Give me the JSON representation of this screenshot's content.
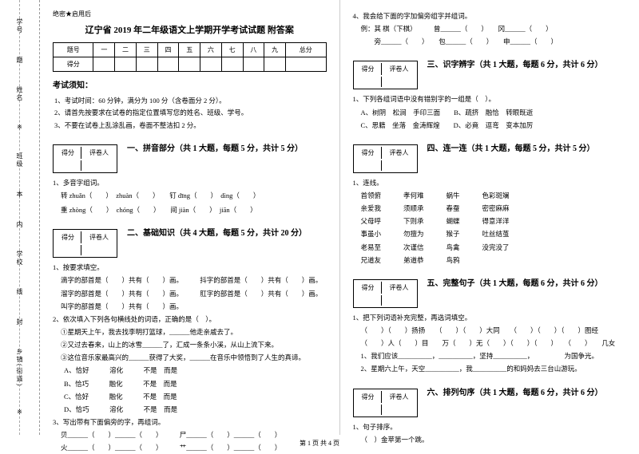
{
  "sidebar": {
    "labels": [
      "学号",
      "姓名",
      "班级",
      "学校",
      "乡镇(街道)"
    ],
    "markers": [
      "题",
      "※",
      "本",
      "内",
      "线",
      "封",
      "※"
    ]
  },
  "secret": "绝密★启用后",
  "title": "辽宁省 2019 年二年级语文上学期开学考试试题  附答案",
  "score_table": {
    "cols": [
      "题号",
      "一",
      "二",
      "三",
      "四",
      "五",
      "六",
      "七",
      "八",
      "九",
      "总分"
    ],
    "row_label": "得分"
  },
  "notice": {
    "heading": "考试须知：",
    "items": [
      "1、考试时间：60 分钟，满分为 100 分（含卷面分 2 分）。",
      "2、请首先按要求在试卷的指定位置填写您的姓名、班级、学号。",
      "3、不要在试卷上乱涂乱画，卷面不整洁扣 2 分。"
    ]
  },
  "scorer_cells": [
    "得分",
    "评卷人"
  ],
  "sec1": {
    "title": "一、拼音部分（共 1 大题，每题 5 分，共计 5 分）",
    "q": "1、多音字组词。",
    "rows": [
      [
        "转 zhuǎn（　　）",
        "zhuàn（　　）",
        "钉 dīng（　　）",
        "dìng（　　）"
      ],
      [
        "重 zhòng（　　）",
        "chóng（　　）",
        "间 jiàn（　　）",
        "jiān（　　）"
      ]
    ]
  },
  "sec2": {
    "title": "二、基础知识（共 4 大题，每题 5 分，共计 20 分）",
    "q1": "1、按要求填空。",
    "q1_rows": [
      "滴字的部首是（　　）共有（　　）画。　　　抖字的部首是（　　）共有（　　）画。",
      "溜字的部首是（　　）共有（　　）画。　　　肛字的部首是（　　）共有（　　）画。",
      "叫字的部首是（　　）共有（　　）画。"
    ],
    "q2": "2、依次填入下列各句横线处的词语，正确的是（　）。",
    "q2_lines": [
      "①星期天上午，我去找李明打篮球，______他走亲戚去了。",
      "②又过去春来，山上的冰雪______了，汇成一条条小溪，从山上流下来。",
      "③这位音乐家最高兴的______获得了大奖，______在音乐中领悟到了人生的真谛。"
    ],
    "q2_opts": [
      "A、恰好　　　溶化　　　不是　而是",
      "B、恰巧　　　融化　　　不是　而是",
      "C、恰好　　　融化　　　不是　而是",
      "D、恰巧　　　溶化　　　不是　而是"
    ],
    "q3": "3、写出带有下面偏旁的字，再组词。",
    "q3_rows": [
      "贝______（　　）______（　　）　　　尸______（　　）______（　　）",
      "火______（　　）______（　　）　　　艹______（　　）______（　　）"
    ]
  },
  "right": {
    "q4": "4、我会给下面的字加偏旁组字并组词。",
    "q4_rows": [
      "例：其 棋（下棋）　　　曾______（　　）　　冈______（　　）",
      "　　旁______（　　）　　包______（　　）　　申______（　　）"
    ]
  },
  "sec3": {
    "title": "三、识字辨字（共 1 大题，每题 6 分，共计 6 分）",
    "q": "1、下列各组词语中没有错别字的一组是（　）。",
    "opts": [
      "A、树阴　松涧　手印三面　　B、疏挤　融恰　转眼既逝",
      "C、思籍　坐落　金涛辉煌　　D、必竟　逗弯　变本加厉"
    ]
  },
  "sec4": {
    "title": "四、连一连（共 1 大题，每题 5 分，共计 5 分）",
    "q": "1、连线。",
    "cols": [
      [
        "首领俯",
        "亲爱我",
        "父母呼",
        "事虽小",
        "老易至",
        "兄道友"
      ],
      [
        "孝何难",
        "须顺承",
        "下则承",
        "勿擅为",
        "次谨信",
        "弟道恭"
      ],
      [
        "蜗牛",
        "春蚕",
        "蝴蝶",
        "猴子",
        "鸟禽",
        "鸟鸦"
      ],
      [
        "色彩斑斓",
        "密密麻麻",
        "得意洋洋",
        "吐丝结茧",
        "没完没了"
      ]
    ]
  },
  "sec5": {
    "title": "五、完整句子（共 1 大题，每题 6 分，共计 6 分）",
    "q": "1、把下列词语补充完整，再选词填空。",
    "rows": [
      "（　　）（　　）扬扬　　（　　）（　　）大同　　（　　）（　　）（　　）图经",
      "（　　）人（　　）目　　万（　　）无（　　）（　　）（　　）　　（　　）　　几女",
      "1、我们应该__________，__________，坚持__________，　　　　　为国争光。",
      "2、星期六上午，天空__________，我__________的和妈妈去三台山游玩。"
    ]
  },
  "sec6": {
    "title": "六、排列句序（共 1 大题，每题 6 分，共计 6 分）",
    "q": "1、句子排序。",
    "line": "（　）金苹第一个跳。"
  },
  "footer": "第 1 页  共 4 页"
}
